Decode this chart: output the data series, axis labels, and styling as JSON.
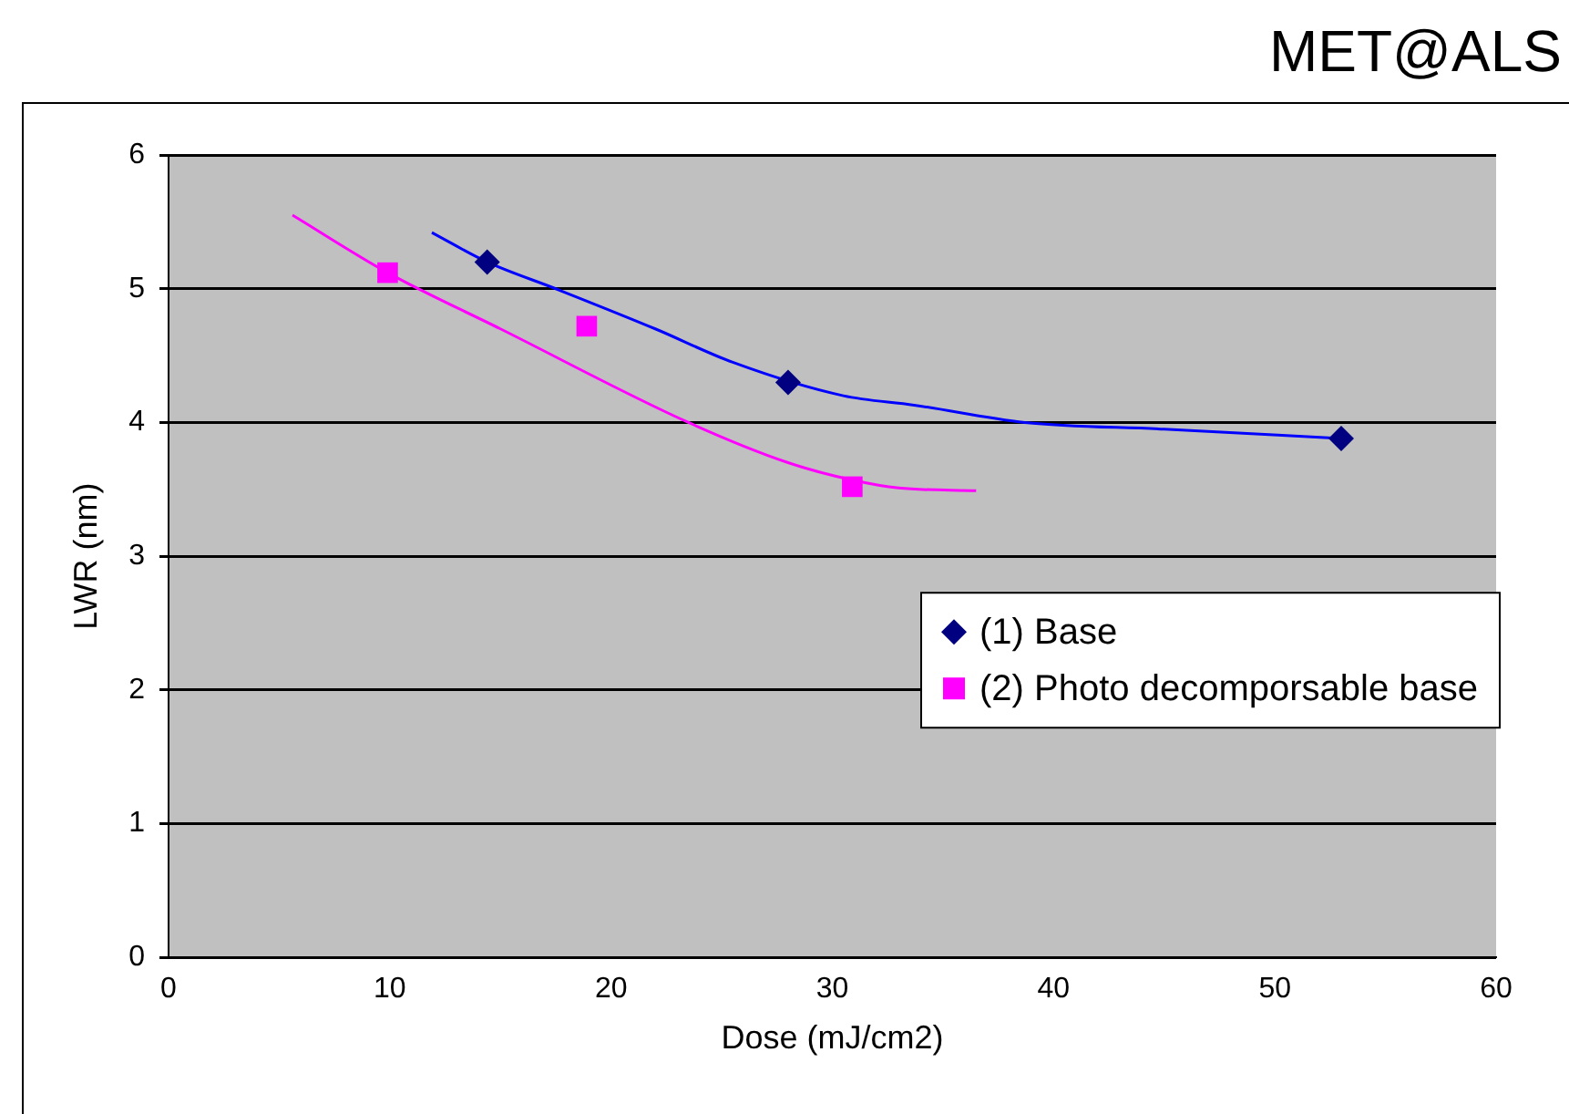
{
  "chart_data": {
    "type": "scatter",
    "title": "MET@ALS",
    "xlabel": "Dose (mJ/cm2)",
    "ylabel": "LWR (nm)",
    "xlim": [
      0,
      60
    ],
    "xticks": [
      0,
      10,
      20,
      30,
      40,
      50,
      60
    ],
    "ylim": [
      0,
      6
    ],
    "yticks": [
      0,
      1,
      2,
      3,
      4,
      5,
      6
    ],
    "grid": "y",
    "legend": "right",
    "series": [
      {
        "name": "(1) Base",
        "color": "#000080",
        "marker": "diamond",
        "x": [
          14.4,
          28,
          53
        ],
        "values": [
          5.2,
          4.3,
          3.88
        ]
      },
      {
        "name": "(2) Photo decomporsable base",
        "color": "#ff00ff",
        "marker": "square",
        "x": [
          9.9,
          18.9,
          30.9
        ],
        "values": [
          5.12,
          4.72,
          3.52
        ]
      },
      {
        "type": "line",
        "color": "#0000ff",
        "marker": "none",
        "x": [
          11.9,
          14.4,
          17.5,
          22,
          25.5,
          30.5,
          33.7,
          38.7,
          45,
          53
        ],
        "values": [
          5.42,
          5.2,
          5.0,
          4.7,
          4.45,
          4.2,
          4.13,
          4.0,
          3.95,
          3.88
        ]
      },
      {
        "type": "line",
        "color": "#ff00ff",
        "marker": "none",
        "x": [
          5.6,
          9.9,
          15,
          23.5,
          28,
          30.9,
          33,
          36.5
        ],
        "values": [
          5.55,
          5.12,
          4.7,
          4.0,
          3.7,
          3.57,
          3.51,
          3.49
        ]
      }
    ]
  }
}
